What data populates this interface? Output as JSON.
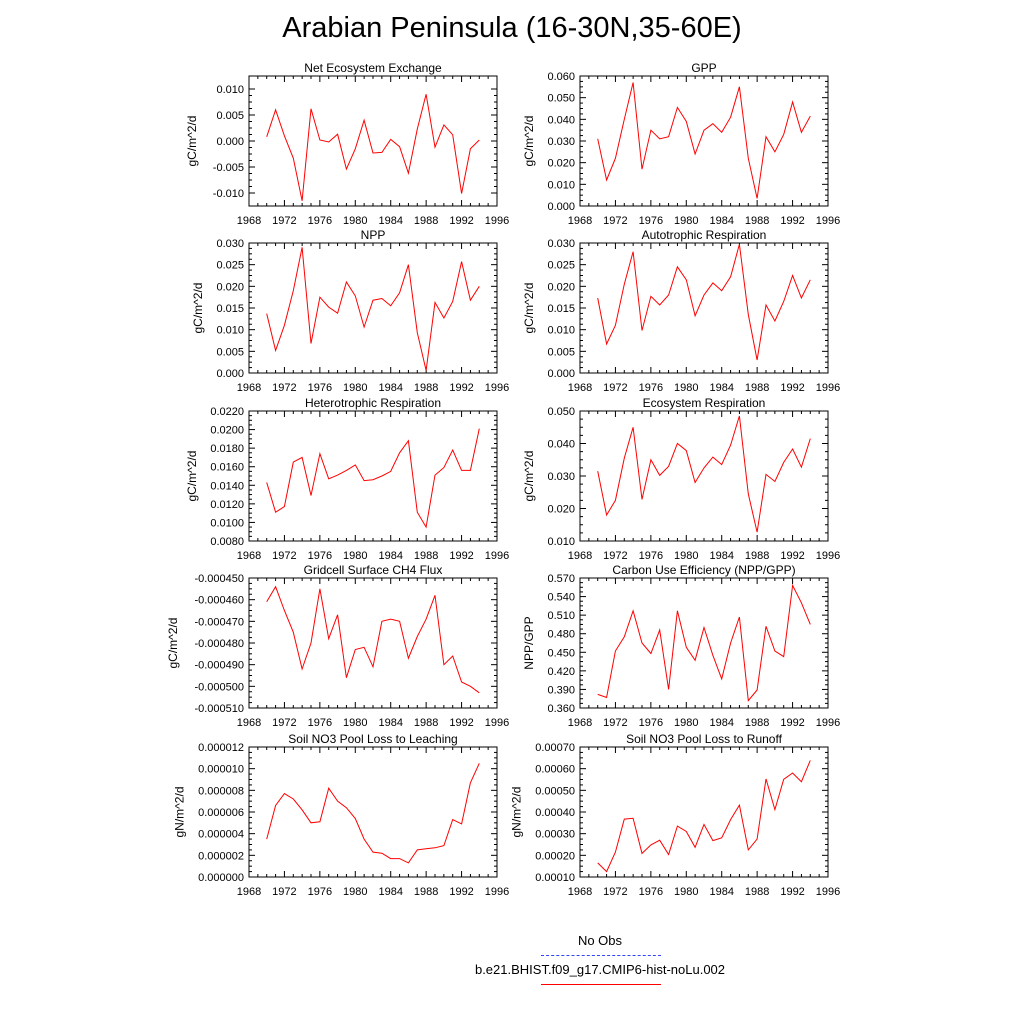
{
  "title": "Arabian Peninsula (16-30N,35-60E)",
  "colors": {
    "model": "#ff0000",
    "obs": "#3344ff",
    "axis": "#000000"
  },
  "legend": [
    {
      "label": "No Obs",
      "color": "#3344ff",
      "style": "dashed"
    },
    {
      "label": "b.e21.BHIST.f09_g17.CMIP6-hist-noLu.002",
      "color": "#ff0000",
      "style": "solid"
    }
  ],
  "chart_data": [
    {
      "type": "line",
      "title": "Net Ecosystem Exchange",
      "ylabel": "gC/m^2/d",
      "xlabel": "",
      "xlim": [
        1968,
        1996
      ],
      "xticks": [
        1968,
        1972,
        1976,
        1980,
        1984,
        1988,
        1992,
        1996
      ],
      "ylim": [
        -0.0125,
        0.0125
      ],
      "yticks": [
        -0.01,
        -0.005,
        0.0,
        0.005,
        0.01
      ],
      "decimals": 3,
      "x": [
        1970,
        1971,
        1972,
        1973,
        1974,
        1975,
        1976,
        1977,
        1978,
        1979,
        1980,
        1981,
        1982,
        1983,
        1984,
        1985,
        1986,
        1987,
        1988,
        1989,
        1990,
        1991,
        1992,
        1993,
        1994
      ],
      "series": [
        {
          "values": [
            0.0008,
            0.006,
            0.001,
            -0.0033,
            -0.0115,
            0.0062,
            0.0002,
            -0.0002,
            0.0013,
            -0.0054,
            -0.0015,
            0.004,
            -0.0023,
            -0.0022,
            0.0003,
            -0.0011,
            -0.0062,
            0.0023,
            0.009,
            -0.0012,
            0.0031,
            0.0012,
            -0.0101,
            -0.0015,
            0.0002
          ]
        }
      ]
    },
    {
      "type": "line",
      "title": "GPP",
      "ylabel": "gC/m^2/d",
      "xlabel": "",
      "xlim": [
        1968,
        1996
      ],
      "xticks": [
        1968,
        1972,
        1976,
        1980,
        1984,
        1988,
        1992,
        1996
      ],
      "ylim": [
        0.0,
        0.06
      ],
      "yticks": [
        0.0,
        0.01,
        0.02,
        0.03,
        0.04,
        0.05,
        0.06
      ],
      "decimals": 3,
      "x": [
        1970,
        1971,
        1972,
        1973,
        1974,
        1975,
        1976,
        1977,
        1978,
        1979,
        1980,
        1981,
        1982,
        1983,
        1984,
        1985,
        1986,
        1987,
        1988,
        1989,
        1990,
        1991,
        1992,
        1993,
        1994
      ],
      "series": [
        {
          "values": [
            0.031,
            0.012,
            0.022,
            0.04,
            0.057,
            0.017,
            0.035,
            0.031,
            0.032,
            0.0455,
            0.039,
            0.024,
            0.035,
            0.038,
            0.034,
            0.041,
            0.055,
            0.022,
            0.0035,
            0.032,
            0.025,
            0.033,
            0.048,
            0.034,
            0.0415
          ]
        }
      ]
    },
    {
      "type": "line",
      "title": "NPP",
      "ylabel": "gC/m^2/d",
      "xlabel": "",
      "xlim": [
        1968,
        1996
      ],
      "xticks": [
        1968,
        1972,
        1976,
        1980,
        1984,
        1988,
        1992,
        1996
      ],
      "ylim": [
        0.0,
        0.03
      ],
      "yticks": [
        0.0,
        0.005,
        0.01,
        0.015,
        0.02,
        0.025,
        0.03
      ],
      "decimals": 3,
      "x": [
        1970,
        1971,
        1972,
        1973,
        1974,
        1975,
        1976,
        1977,
        1978,
        1979,
        1980,
        1981,
        1982,
        1983,
        1984,
        1985,
        1986,
        1987,
        1988,
        1989,
        1990,
        1991,
        1992,
        1993,
        1994
      ],
      "series": [
        {
          "values": [
            0.0137,
            0.0052,
            0.011,
            0.019,
            0.029,
            0.0068,
            0.0175,
            0.0152,
            0.0138,
            0.021,
            0.0178,
            0.0106,
            0.0168,
            0.0172,
            0.0155,
            0.0185,
            0.025,
            0.0093,
            0.0006,
            0.0163,
            0.0127,
            0.0165,
            0.0257,
            0.0168,
            0.02
          ]
        }
      ]
    },
    {
      "type": "line",
      "title": "Autotrophic Respiration",
      "ylabel": "gC/m^2/d",
      "xlabel": "",
      "xlim": [
        1968,
        1996
      ],
      "xticks": [
        1968,
        1972,
        1976,
        1980,
        1984,
        1988,
        1992,
        1996
      ],
      "ylim": [
        0.0,
        0.03
      ],
      "yticks": [
        0.0,
        0.005,
        0.01,
        0.015,
        0.02,
        0.025,
        0.03
      ],
      "decimals": 3,
      "x": [
        1970,
        1971,
        1972,
        1973,
        1974,
        1975,
        1976,
        1977,
        1978,
        1979,
        1980,
        1981,
        1982,
        1983,
        1984,
        1985,
        1986,
        1987,
        1988,
        1989,
        1990,
        1991,
        1992,
        1993,
        1994
      ],
      "series": [
        {
          "values": [
            0.0173,
            0.0067,
            0.011,
            0.0205,
            0.028,
            0.0098,
            0.0177,
            0.0157,
            0.018,
            0.0245,
            0.0215,
            0.0132,
            0.018,
            0.0208,
            0.019,
            0.0222,
            0.0297,
            0.0135,
            0.003,
            0.0157,
            0.012,
            0.0165,
            0.0225,
            0.0173,
            0.0215
          ]
        }
      ]
    },
    {
      "type": "line",
      "title": "Heterotrophic Respiration",
      "ylabel": "gC/m^2/d",
      "xlabel": "",
      "xlim": [
        1968,
        1996
      ],
      "xticks": [
        1968,
        1972,
        1976,
        1980,
        1984,
        1988,
        1992,
        1996
      ],
      "ylim": [
        0.008,
        0.022
      ],
      "yticks": [
        0.008,
        0.01,
        0.012,
        0.014,
        0.016,
        0.018,
        0.02,
        0.022
      ],
      "decimals": 4,
      "x": [
        1970,
        1971,
        1972,
        1973,
        1974,
        1975,
        1976,
        1977,
        1978,
        1979,
        1980,
        1981,
        1982,
        1983,
        1984,
        1985,
        1986,
        1987,
        1988,
        1989,
        1990,
        1991,
        1992,
        1993,
        1994
      ],
      "series": [
        {
          "values": [
            0.0143,
            0.0111,
            0.0117,
            0.0165,
            0.017,
            0.0129,
            0.0174,
            0.0147,
            0.0151,
            0.0156,
            0.0162,
            0.0145,
            0.0146,
            0.015,
            0.0155,
            0.0175,
            0.0188,
            0.0111,
            0.0095,
            0.0151,
            0.0159,
            0.0178,
            0.0156,
            0.0156,
            0.0201
          ]
        }
      ]
    },
    {
      "type": "line",
      "title": "Ecosystem Respiration",
      "ylabel": "gC/m^2/d",
      "xlabel": "",
      "xlim": [
        1968,
        1996
      ],
      "xticks": [
        1968,
        1972,
        1976,
        1980,
        1984,
        1988,
        1992,
        1996
      ],
      "ylim": [
        0.01,
        0.05
      ],
      "yticks": [
        0.01,
        0.02,
        0.03,
        0.04,
        0.05
      ],
      "decimals": 3,
      "x": [
        1970,
        1971,
        1972,
        1973,
        1974,
        1975,
        1976,
        1977,
        1978,
        1979,
        1980,
        1981,
        1982,
        1983,
        1984,
        1985,
        1986,
        1987,
        1988,
        1989,
        1990,
        1991,
        1992,
        1993,
        1994
      ],
      "series": [
        {
          "values": [
            0.0315,
            0.018,
            0.0225,
            0.0355,
            0.045,
            0.0228,
            0.035,
            0.0302,
            0.033,
            0.04,
            0.0378,
            0.028,
            0.0325,
            0.0358,
            0.0335,
            0.0395,
            0.0485,
            0.0245,
            0.0127,
            0.0305,
            0.0283,
            0.0342,
            0.0383,
            0.0327,
            0.0415
          ]
        }
      ]
    },
    {
      "type": "line",
      "title": "Gridcell Surface CH4 Flux",
      "ylabel": "gC/m^2/d",
      "xlabel": "",
      "xlim": [
        1968,
        1996
      ],
      "xticks": [
        1968,
        1972,
        1976,
        1980,
        1984,
        1988,
        1992,
        1996
      ],
      "ylim": [
        -0.00051,
        -0.00045
      ],
      "yticks": [
        -0.00051,
        -0.0005,
        -0.00049,
        -0.00048,
        -0.00047,
        -0.00046,
        -0.00045
      ],
      "decimals": 6,
      "x": [
        1970,
        1971,
        1972,
        1973,
        1974,
        1975,
        1976,
        1977,
        1978,
        1979,
        1980,
        1981,
        1982,
        1983,
        1984,
        1985,
        1986,
        1987,
        1988,
        1989,
        1990,
        1991,
        1992,
        1993,
        1994
      ],
      "series": [
        {
          "values": [
            -0.000461,
            -0.000454,
            -0.000465,
            -0.000475,
            -0.000492,
            -0.00048,
            -0.000455,
            -0.000478,
            -0.000467,
            -0.000496,
            -0.000483,
            -0.000482,
            -0.000491,
            -0.00047,
            -0.000469,
            -0.00047,
            -0.000487,
            -0.000477,
            -0.000469,
            -0.000458,
            -0.00049,
            -0.000486,
            -0.000498,
            -0.0005,
            -0.000503
          ]
        }
      ]
    },
    {
      "type": "line",
      "title": "Carbon Use Efficiency (NPP/GPP)",
      "ylabel": "NPP/GPP",
      "xlabel": "",
      "xlim": [
        1968,
        1996
      ],
      "xticks": [
        1968,
        1972,
        1976,
        1980,
        1984,
        1988,
        1992,
        1996
      ],
      "ylim": [
        0.36,
        0.57
      ],
      "yticks": [
        0.36,
        0.39,
        0.42,
        0.45,
        0.48,
        0.51,
        0.54,
        0.57
      ],
      "decimals": 3,
      "x": [
        1970,
        1971,
        1972,
        1973,
        1974,
        1975,
        1976,
        1977,
        1978,
        1979,
        1980,
        1981,
        1982,
        1983,
        1984,
        1985,
        1986,
        1987,
        1988,
        1989,
        1990,
        1991,
        1992,
        1993,
        1994
      ],
      "series": [
        {
          "values": [
            0.382,
            0.377,
            0.452,
            0.475,
            0.517,
            0.465,
            0.448,
            0.486,
            0.39,
            0.517,
            0.458,
            0.437,
            0.49,
            0.445,
            0.407,
            0.465,
            0.507,
            0.372,
            0.389,
            0.492,
            0.452,
            0.443,
            0.558,
            0.53,
            0.495
          ]
        }
      ]
    },
    {
      "type": "line",
      "title": "Soil NO3 Pool Loss to Leaching",
      "ylabel": "gN/m^2/d",
      "xlabel": "",
      "xlim": [
        1968,
        1996
      ],
      "xticks": [
        1968,
        1972,
        1976,
        1980,
        1984,
        1988,
        1992,
        1996
      ],
      "ylim": [
        0.0,
        1.2e-05
      ],
      "yticks": [
        0.0,
        2e-06,
        4e-06,
        6e-06,
        8e-06,
        1e-05,
        1.2e-05
      ],
      "decimals": 6,
      "x": [
        1970,
        1971,
        1972,
        1973,
        1974,
        1975,
        1976,
        1977,
        1978,
        1979,
        1980,
        1981,
        1982,
        1983,
        1984,
        1985,
        1986,
        1987,
        1988,
        1989,
        1990,
        1991,
        1992,
        1993,
        1994
      ],
      "series": [
        {
          "values": [
            3.5e-06,
            6.6e-06,
            7.7e-06,
            7.2e-06,
            6.2e-06,
            5e-06,
            5.1e-06,
            8.2e-06,
            7e-06,
            6.4e-06,
            5.4e-06,
            3.5e-06,
            2.3e-06,
            2.2e-06,
            1.7e-06,
            1.7e-06,
            1.3e-06,
            2.5e-06,
            2.6e-06,
            2.7e-06,
            2.9e-06,
            5.3e-06,
            4.9e-06,
            8.7e-06,
            1.05e-05
          ]
        }
      ]
    },
    {
      "type": "line",
      "title": "Soil NO3 Pool Loss to Runoff",
      "ylabel": "gN/m^2/d",
      "xlabel": "",
      "xlim": [
        1968,
        1996
      ],
      "xticks": [
        1968,
        1972,
        1976,
        1980,
        1984,
        1988,
        1992,
        1996
      ],
      "ylim": [
        0.0001,
        0.0007
      ],
      "yticks": [
        0.0001,
        0.0002,
        0.0003,
        0.0004,
        0.0005,
        0.0006,
        0.0007
      ],
      "decimals": 5,
      "x": [
        1970,
        1971,
        1972,
        1973,
        1974,
        1975,
        1976,
        1977,
        1978,
        1979,
        1980,
        1981,
        1982,
        1983,
        1984,
        1985,
        1986,
        1987,
        1988,
        1989,
        1990,
        1991,
        1992,
        1993,
        1994
      ],
      "series": [
        {
          "values": [
            0.000165,
            0.000125,
            0.000215,
            0.000367,
            0.000371,
            0.000209,
            0.000248,
            0.00027,
            0.000204,
            0.000335,
            0.00031,
            0.000237,
            0.000343,
            0.000268,
            0.000281,
            0.000365,
            0.000432,
            0.000225,
            0.000275,
            0.000553,
            0.000411,
            0.000551,
            0.00058,
            0.00054,
            0.000638
          ]
        }
      ]
    }
  ]
}
